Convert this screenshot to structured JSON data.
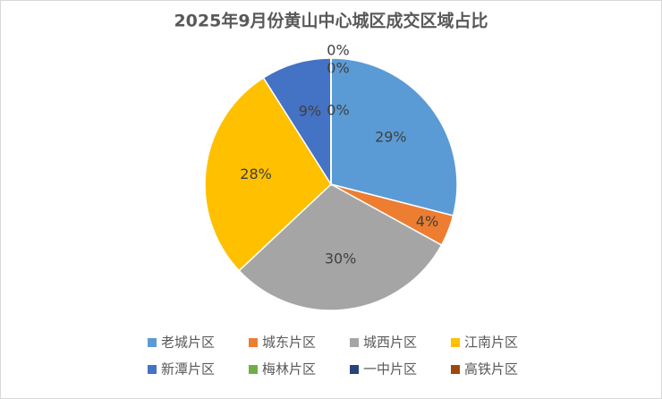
{
  "chart_data": {
    "type": "pie",
    "title": "2025年9月份黄山中心城区成交区域占比",
    "categories": [
      "老城片区",
      "城东片区",
      "城西片区",
      "江南片区",
      "新潭片区",
      "梅林片区",
      "一中片区",
      "高铁片区"
    ],
    "values": [
      29,
      4,
      30,
      28,
      9,
      0,
      0,
      0
    ],
    "value_labels": [
      "29%",
      "4%",
      "30%",
      "28%",
      "9%",
      "0%",
      "0%",
      "0%"
    ],
    "colors": [
      "#5b9bd5",
      "#ed7d31",
      "#a5a5a5",
      "#ffc000",
      "#4472c4",
      "#70ad47",
      "#264478",
      "#9e480e"
    ],
    "legend": "bottom"
  }
}
